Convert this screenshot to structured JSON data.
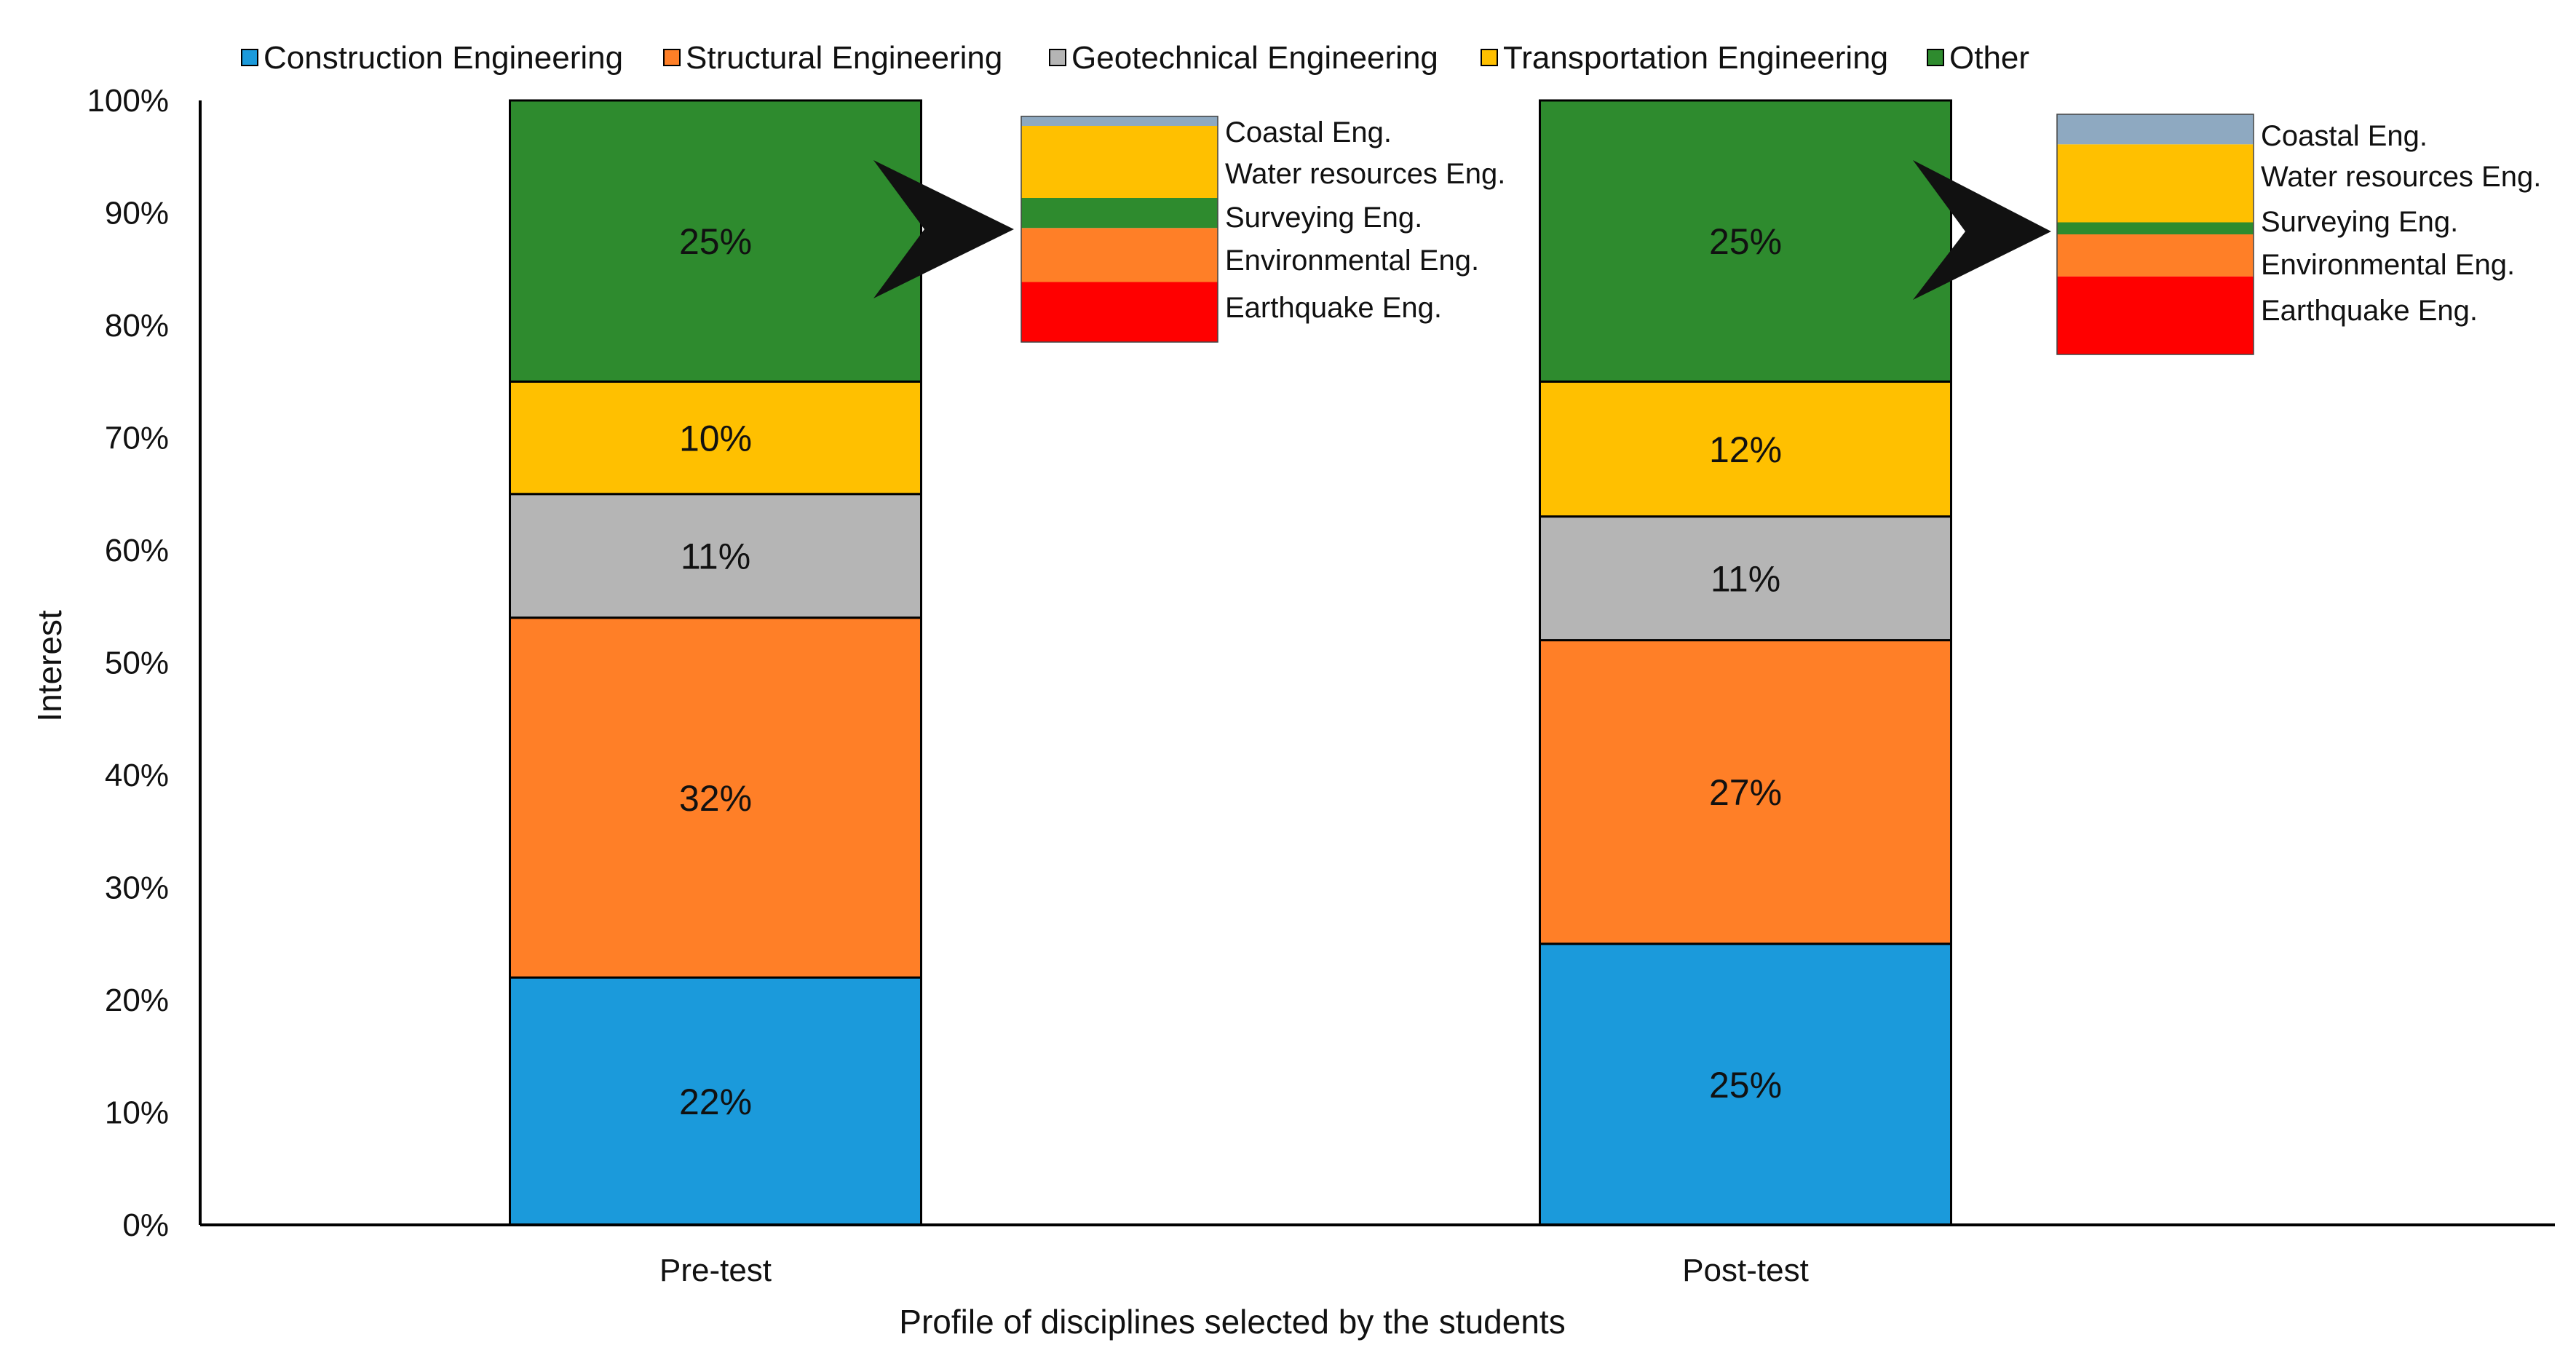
{
  "chart_data": {
    "type": "bar",
    "stacked": true,
    "xlabel": "Profile of disciplines selected by the students",
    "ylabel": "Interest",
    "ylim": [
      0,
      100
    ],
    "yticks": [
      "0%",
      "10%",
      "20%",
      "30%",
      "40%",
      "50%",
      "60%",
      "70%",
      "80%",
      "90%",
      "100%"
    ],
    "categories": [
      "Pre-test",
      "Post-test"
    ],
    "series": [
      {
        "name": "Construction Engineering",
        "color": "#1B9ADB",
        "values": [
          22,
          25
        ],
        "labels": [
          "22%",
          "25%"
        ]
      },
      {
        "name": "Structural Engineering",
        "color": "#FF7F27",
        "values": [
          32,
          27
        ],
        "labels": [
          "32%",
          "27%"
        ]
      },
      {
        "name": "Geotechnical Engineering",
        "color": "#B5B5B5",
        "values": [
          11,
          11
        ],
        "labels": [
          "11%",
          "11%"
        ]
      },
      {
        "name": "Transportation Engineering",
        "color": "#FFC000",
        "values": [
          10,
          12
        ],
        "labels": [
          "10%",
          "12%"
        ]
      },
      {
        "name": "Other",
        "color": "#2E8B2E",
        "values": [
          25,
          25
        ],
        "labels": [
          "25%",
          "25%"
        ]
      }
    ],
    "legend_position": "top",
    "other_breakdown": {
      "description": "Breakdown of the Other segment shown as a small stacked inset next to each bar",
      "categories": [
        "Earthquake Eng.",
        "Environmental Eng.",
        "Surveying Eng.",
        "Water resources Eng.",
        "Coastal Eng."
      ],
      "colors": [
        "#FF0000",
        "#FF7F27",
        "#2E8B2E",
        "#FFC000",
        "#8EA9C1"
      ],
      "pre_test": [
        5,
        4.5,
        2.5,
        6,
        0.8
      ],
      "post_test": [
        6.5,
        3.5,
        1,
        6.5,
        2.5
      ]
    }
  }
}
